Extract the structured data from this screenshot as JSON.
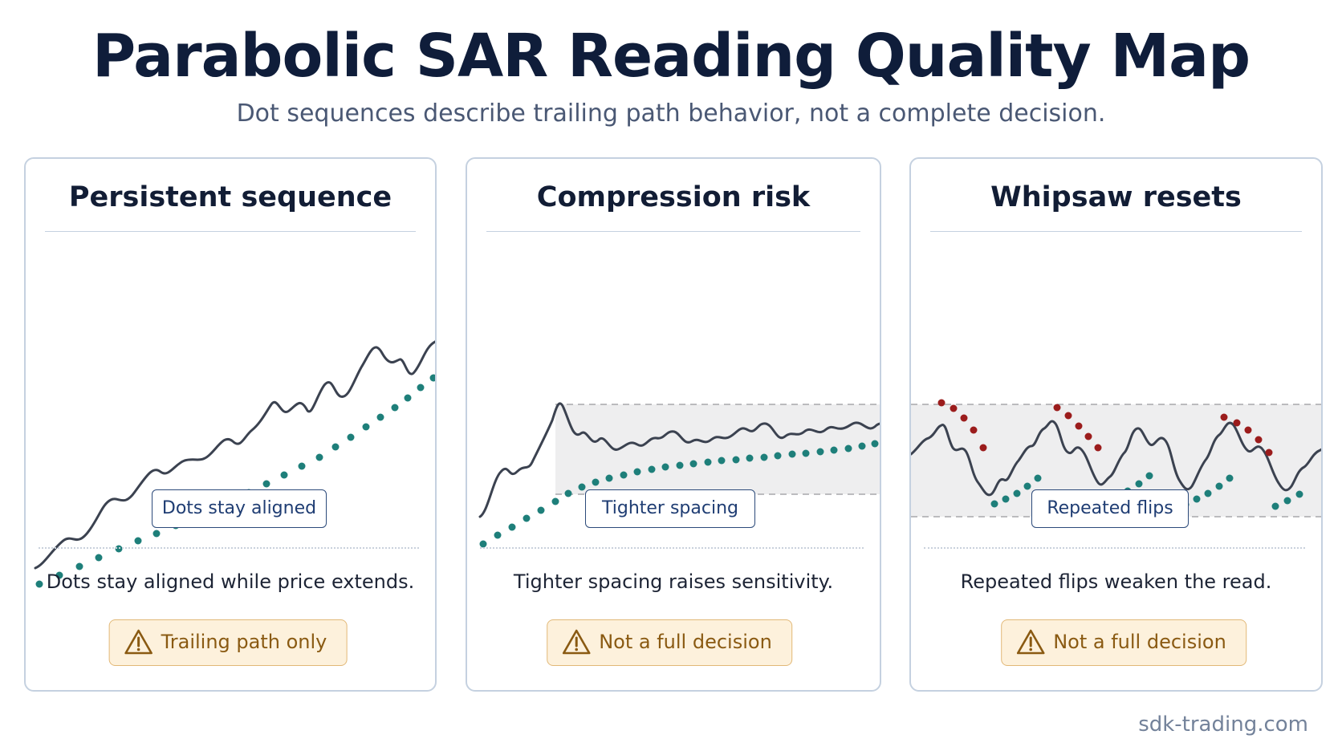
{
  "title": "Parabolic SAR Reading Quality Map",
  "subtitle": "Dot sequences describe trailing path behavior, not a complete decision.",
  "colors": {
    "price_line": "#3b4250",
    "dot_teal": "#1e7f7a",
    "dot_red": "#9b1c1c",
    "zone_fill": "#eeeeef",
    "zone_dash": "#a7a7ab",
    "warning_fill": "#fdf1dc",
    "warning_text": "#8a5a12",
    "tag_border": "#2c4a7a"
  },
  "panels": [
    {
      "heading": "Persistent sequence",
      "tag": "Dots stay aligned",
      "description": "Dots stay aligned while price extends.",
      "warning": "Trailing path only",
      "warning_icon": "warning-triangle-icon"
    },
    {
      "heading": "Compression risk",
      "tag": "Tighter spacing",
      "description": "Tighter spacing raises sensitivity.",
      "warning": "Not a full decision",
      "warning_icon": "warning-triangle-icon"
    },
    {
      "heading": "Whipsaw resets",
      "tag": "Repeated flips",
      "description": "Repeated flips weaken the read.",
      "warning": "Not a full decision",
      "warning_icon": "warning-triangle-icon"
    }
  ],
  "footer": "sdk-trading.com"
}
